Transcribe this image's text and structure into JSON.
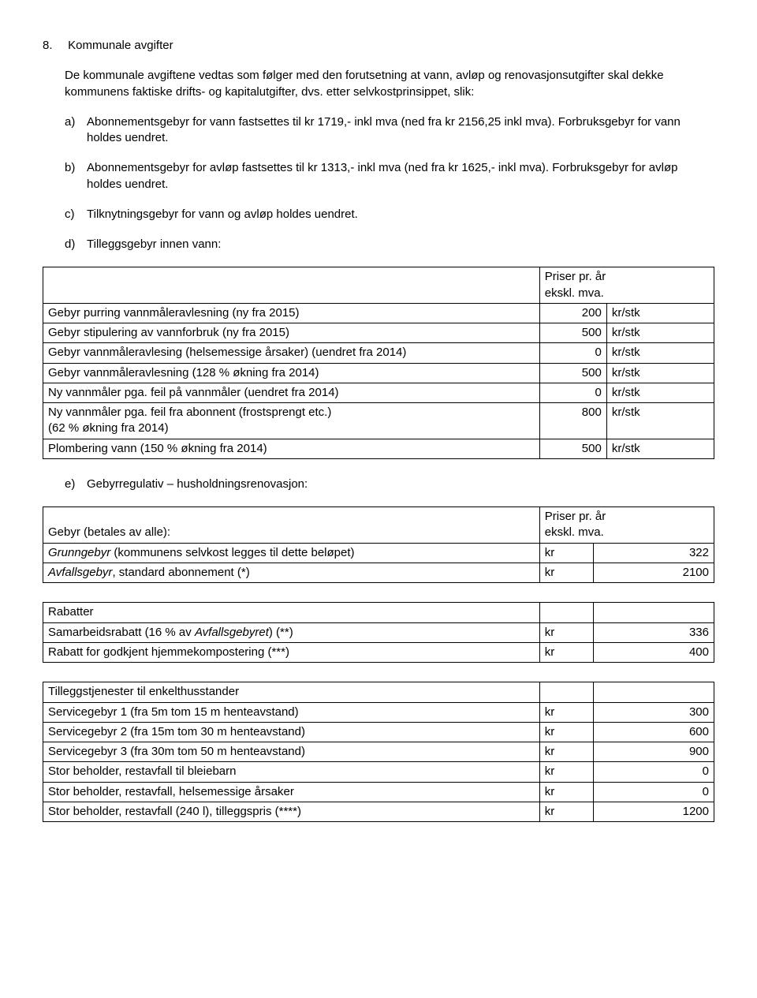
{
  "section": {
    "number": "8.",
    "title": "Kommunale avgifter",
    "intro": "De kommunale avgiftene vedtas som følger med den forutsetning at vann, avløp og renovasjonsutgifter skal dekke kommunens faktiske drifts- og kapitalutgifter, dvs. etter selvkostprinsippet, slik:",
    "items": {
      "a": {
        "marker": "a)",
        "text": "Abonnementsgebyr for vann fastsettes til kr 1719,- inkl mva (ned fra kr 2156,25 inkl mva). Forbruksgebyr for vann holdes uendret."
      },
      "b": {
        "marker": "b)",
        "text": "Abonnementsgebyr for avløp fastsettes til kr 1313,- inkl mva (ned fra kr 1625,- inkl mva). Forbruksgebyr for avløp holdes uendret."
      },
      "c": {
        "marker": "c)",
        "text": "Tilknytningsgebyr for vann og avløp holdes uendret."
      },
      "d": {
        "marker": "d)",
        "text": "Tilleggsgebyr innen vann:"
      },
      "e": {
        "marker": "e)",
        "text": "Gebyrregulativ – husholdningsrenovasjon:"
      }
    }
  },
  "tableD": {
    "header": {
      "price_line1": "Priser pr. år",
      "price_line2": "ekskl. mva."
    },
    "rows": [
      {
        "label": "Gebyr purring vannmåleravlesning (ny fra 2015)",
        "val": "200",
        "unit": "kr/stk"
      },
      {
        "label": "Gebyr stipulering av vannforbruk (ny fra 2015)",
        "val": "500",
        "unit": "kr/stk"
      },
      {
        "label": "Gebyr vannmåleravlesing (helsemessige årsaker) (uendret fra 2014)",
        "val": "0",
        "unit": "kr/stk"
      },
      {
        "label": "Gebyr vannmåleravlesning (128 % økning fra 2014)",
        "val": "500",
        "unit": "kr/stk"
      },
      {
        "label": "Ny vannmåler pga. feil på vannmåler (uendret fra 2014)",
        "val": "0",
        "unit": "kr/stk"
      },
      {
        "label": "Ny vannmåler pga. feil fra abonnent (frostsprengt etc.)\n(62 % økning fra 2014)",
        "val": "800",
        "unit": "kr/stk"
      },
      {
        "label": "Plombering vann (150 % økning fra 2014)",
        "val": "500",
        "unit": "kr/stk"
      }
    ]
  },
  "tableE": {
    "header": {
      "left": "Gebyr (betales av alle):",
      "price_line1": "Priser pr. år",
      "price_line2": "ekskl. mva."
    },
    "rows": [
      {
        "label_italic": "Grunngebyr",
        "label_rest": " (kommunens selvkost legges til dette beløpet)",
        "cur": "kr",
        "val": "322"
      },
      {
        "label_italic": "Avfallsgebyr",
        "label_rest": ", standard abonnement (*)",
        "cur": "kr",
        "val": "2100"
      },
      {
        "spacer": true
      },
      {
        "label": "Rabatter",
        "cur": "",
        "val": ""
      },
      {
        "label_pre": "Samarbeidsrabatt (16 % av ",
        "label_italic": "Avfallsgebyret",
        "label_post": ") (**)",
        "cur": "kr",
        "val": "336"
      },
      {
        "label": "Rabatt for godkjent hjemmekompostering (***)",
        "cur": "kr",
        "val": "400"
      },
      {
        "spacer": true
      },
      {
        "label": "Tilleggstjenester til enkelthusstander",
        "cur": "",
        "val": ""
      },
      {
        "label": "Servicegebyr 1 (fra 5m tom 15 m henteavstand)",
        "cur": "kr",
        "val": "300"
      },
      {
        "label": "Servicegebyr 2 (fra 15m tom 30 m henteavstand)",
        "cur": "kr",
        "val": "600"
      },
      {
        "label": "Servicegebyr 3 (fra 30m tom 50 m henteavstand)",
        "cur": "kr",
        "val": "900"
      },
      {
        "label": "Stor beholder, restavfall til bleiebarn",
        "cur": "kr",
        "val": "0"
      },
      {
        "label": "Stor beholder, restavfall, helsemessige årsaker",
        "cur": "kr",
        "val": "0"
      },
      {
        "label": "Stor beholder, restavfall (240 l), tilleggspris (****)",
        "cur": "kr",
        "val": "1200"
      }
    ]
  },
  "layout": {
    "tableD_col_widths": [
      "74%",
      "10%",
      "16%"
    ],
    "tableE_col_widths": [
      "74%",
      "8%",
      "18%"
    ]
  }
}
